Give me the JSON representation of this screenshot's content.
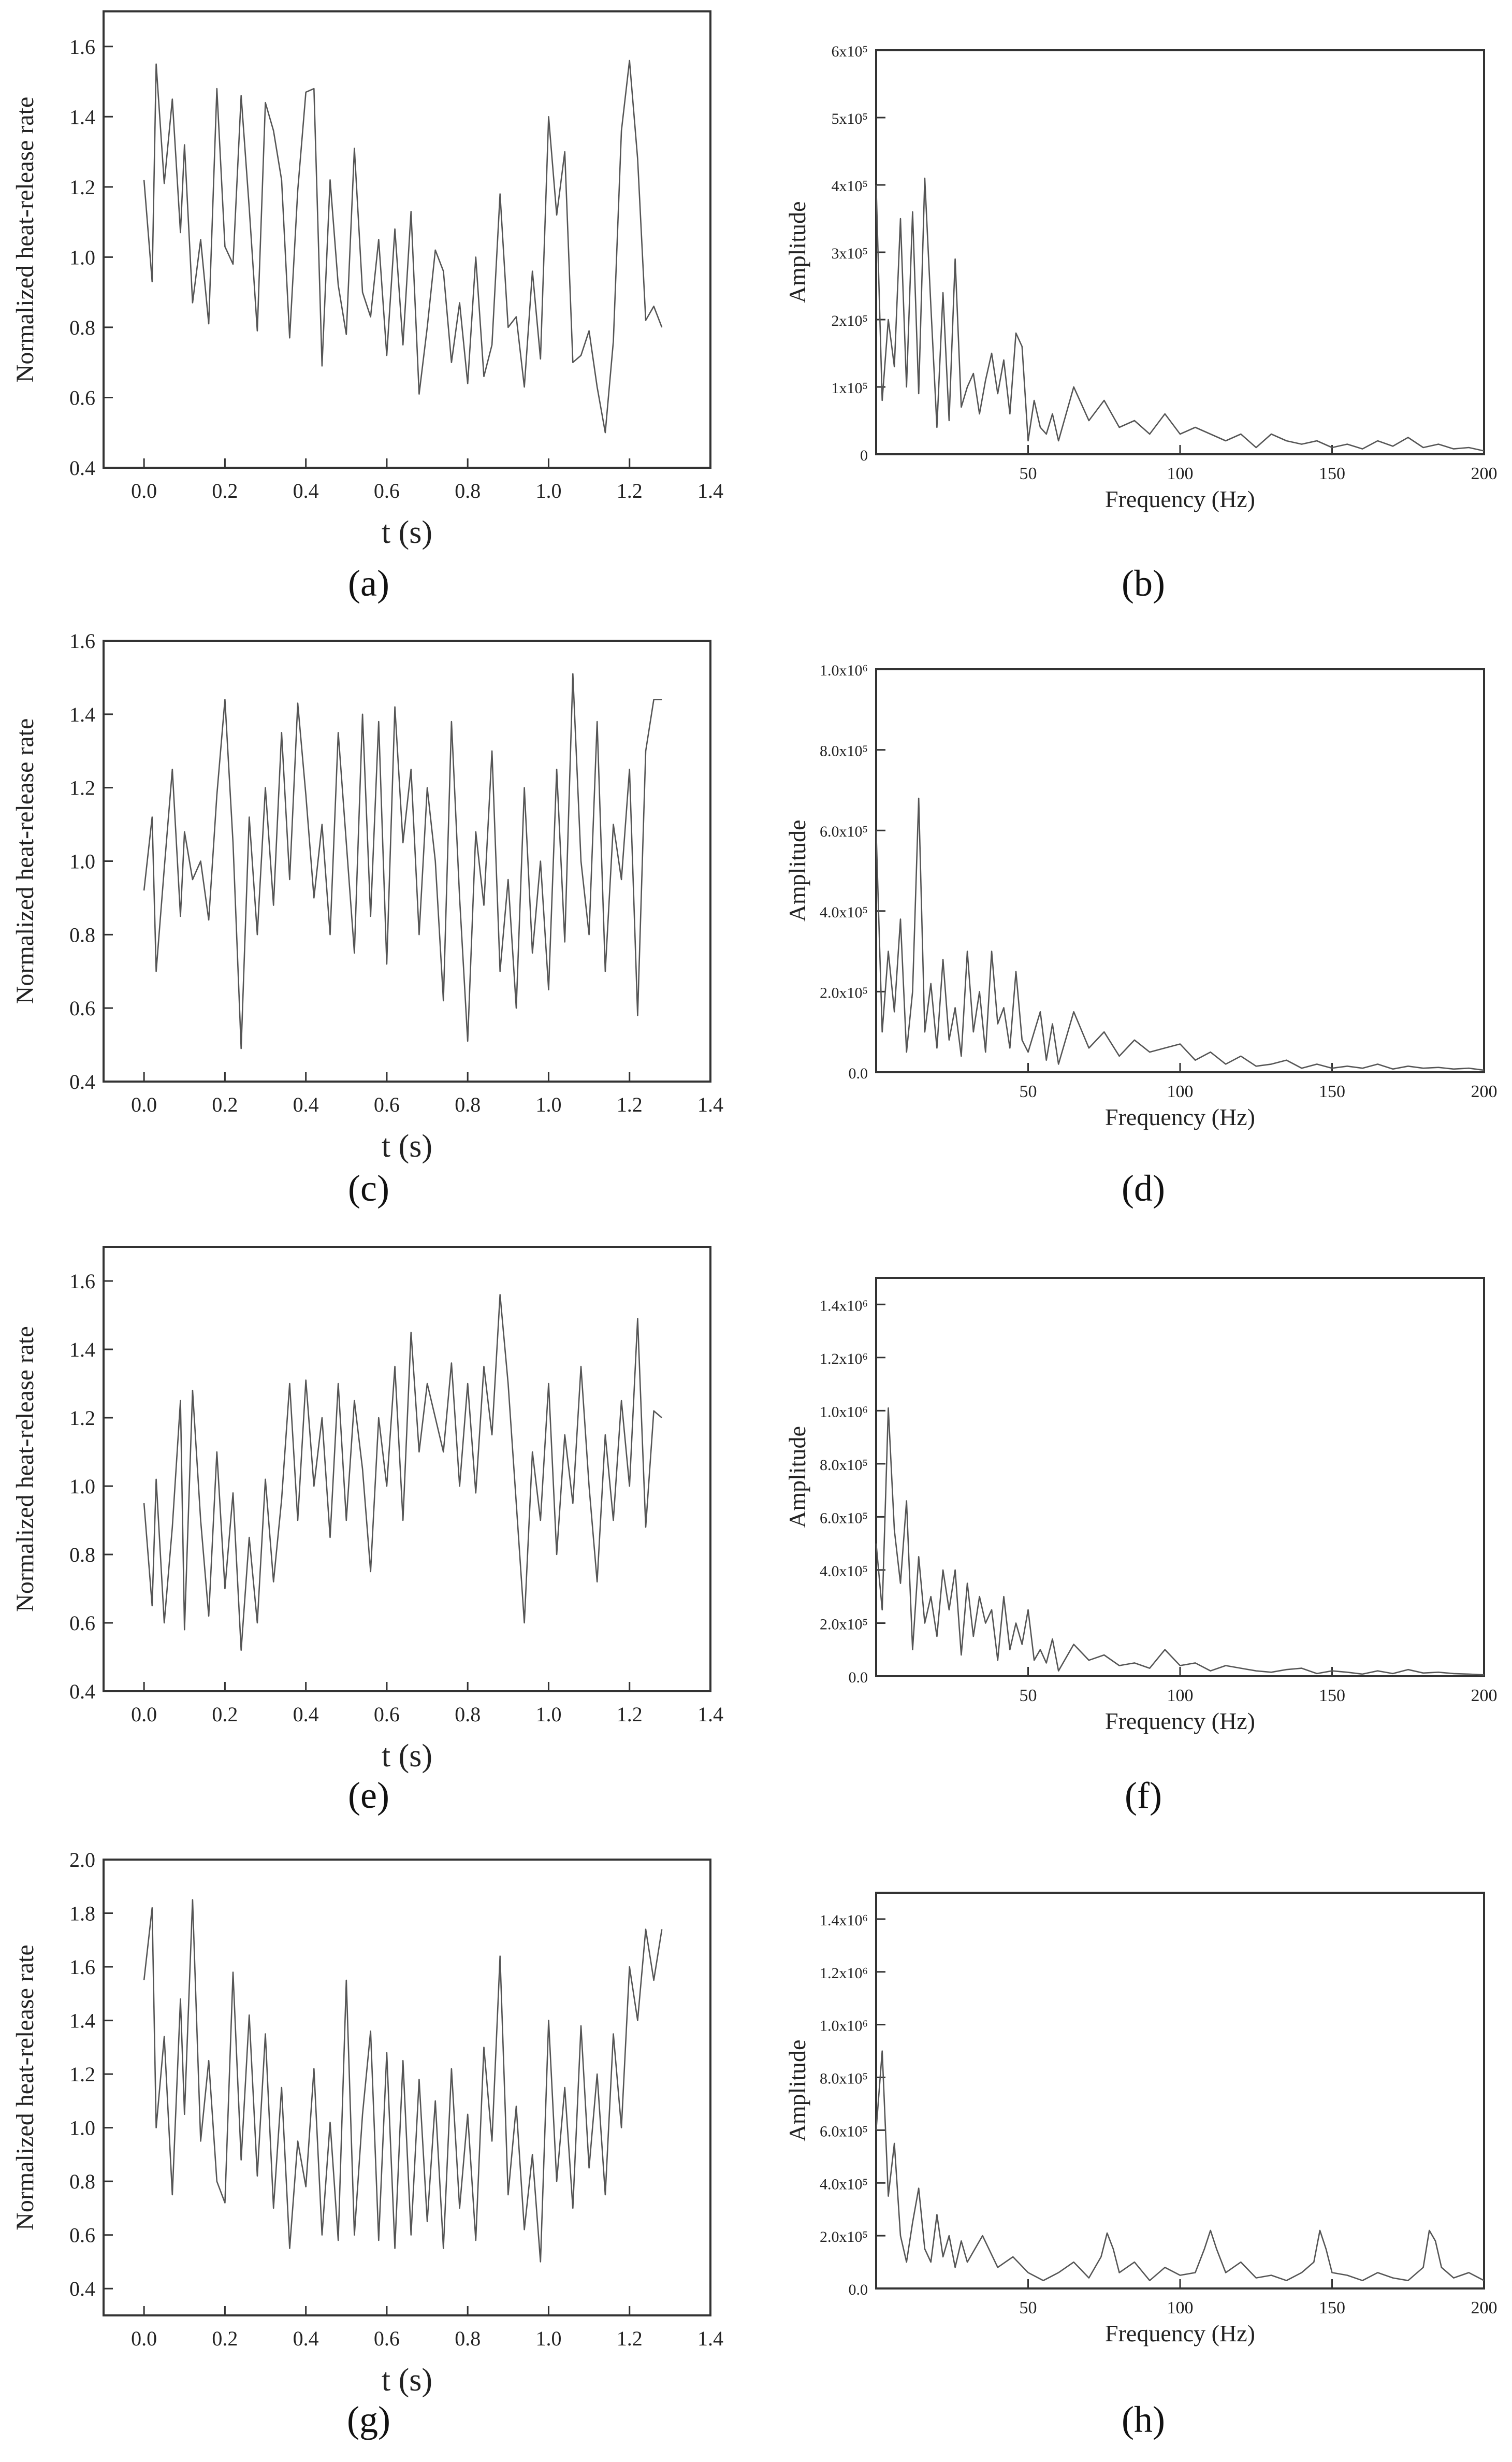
{
  "chart_data": [
    {
      "panel": "a",
      "type": "line",
      "xlabel": "t (s)",
      "ylabel": "Normalized heat-release rate",
      "xlim": [
        -0.1,
        1.4
      ],
      "ylim": [
        0.4,
        1.7
      ],
      "xticks": [
        "0.0",
        "0.2",
        "0.4",
        "0.6",
        "0.8",
        "1.0",
        "1.2",
        "1.4"
      ],
      "yticks": [
        "0.4",
        "0.6",
        "0.8",
        "1.0",
        "1.2",
        "1.4",
        "1.6"
      ],
      "x": [
        0.0,
        0.02,
        0.03,
        0.05,
        0.07,
        0.09,
        0.1,
        0.12,
        0.14,
        0.16,
        0.18,
        0.2,
        0.22,
        0.24,
        0.26,
        0.28,
        0.3,
        0.32,
        0.34,
        0.36,
        0.38,
        0.4,
        0.42,
        0.44,
        0.46,
        0.48,
        0.5,
        0.52,
        0.54,
        0.56,
        0.58,
        0.6,
        0.62,
        0.64,
        0.66,
        0.68,
        0.7,
        0.72,
        0.74,
        0.76,
        0.78,
        0.8,
        0.82,
        0.84,
        0.86,
        0.88,
        0.9,
        0.92,
        0.94,
        0.96,
        0.98,
        1.0,
        1.02,
        1.04,
        1.06,
        1.08,
        1.1,
        1.12,
        1.14,
        1.16,
        1.18,
        1.2,
        1.22,
        1.24,
        1.26,
        1.28
      ],
      "y": [
        1.22,
        0.93,
        1.55,
        1.21,
        1.45,
        1.07,
        1.32,
        0.87,
        1.05,
        0.81,
        1.48,
        1.03,
        0.98,
        1.46,
        1.14,
        0.79,
        1.44,
        1.36,
        1.22,
        0.77,
        1.19,
        1.47,
        1.48,
        0.69,
        1.22,
        0.92,
        0.78,
        1.31,
        0.9,
        0.83,
        1.05,
        0.72,
        1.08,
        0.75,
        1.13,
        0.61,
        0.8,
        1.02,
        0.96,
        0.7,
        0.87,
        0.64,
        1.0,
        0.66,
        0.75,
        1.18,
        0.8,
        0.83,
        0.63,
        0.96,
        0.71,
        1.4,
        1.12,
        1.3,
        0.7,
        0.72,
        0.79,
        0.63,
        0.5,
        0.76,
        1.36,
        1.56,
        1.28,
        0.82,
        0.86,
        0.8
      ]
    },
    {
      "panel": "b",
      "type": "line",
      "xlabel": "Frequency (Hz)",
      "ylabel": "Amplitude",
      "xlim": [
        0,
        200
      ],
      "ylim": [
        0,
        600000
      ],
      "xticks": [
        "50",
        "100",
        "150",
        "200"
      ],
      "yticks": [
        "0",
        "1x10⁵",
        "2x10⁵",
        "3x10⁵",
        "4x10⁵",
        "5x10⁵",
        "6x10⁵"
      ],
      "x": [
        0,
        2,
        4,
        6,
        8,
        10,
        12,
        14,
        16,
        18,
        20,
        22,
        24,
        26,
        28,
        30,
        32,
        34,
        36,
        38,
        40,
        42,
        44,
        46,
        48,
        50,
        52,
        54,
        56,
        58,
        60,
        65,
        70,
        75,
        80,
        85,
        90,
        95,
        100,
        105,
        110,
        115,
        120,
        125,
        130,
        135,
        140,
        145,
        150,
        155,
        160,
        165,
        170,
        175,
        180,
        185,
        190,
        195,
        200
      ],
      "y": [
        400000,
        80000,
        200000,
        130000,
        350000,
        100000,
        360000,
        90000,
        410000,
        220000,
        40000,
        240000,
        50000,
        290000,
        70000,
        100000,
        120000,
        60000,
        110000,
        150000,
        90000,
        140000,
        60000,
        180000,
        160000,
        20000,
        80000,
        40000,
        30000,
        60000,
        20000,
        100000,
        50000,
        80000,
        40000,
        50000,
        30000,
        60000,
        30000,
        40000,
        30000,
        20000,
        30000,
        10000,
        30000,
        20000,
        15000,
        20000,
        10000,
        15000,
        8000,
        20000,
        12000,
        25000,
        10000,
        15000,
        8000,
        10000,
        5000
      ]
    },
    {
      "panel": "c",
      "type": "line",
      "xlabel": "t (s)",
      "ylabel": "Normalized heat-release rate",
      "xlim": [
        -0.1,
        1.4
      ],
      "ylim": [
        0.4,
        1.6
      ],
      "xticks": [
        "0.0",
        "0.2",
        "0.4",
        "0.6",
        "0.8",
        "1.0",
        "1.2",
        "1.4"
      ],
      "yticks": [
        "0.4",
        "0.6",
        "0.8",
        "1.0",
        "1.2",
        "1.4",
        "1.6"
      ],
      "x": [
        0.0,
        0.02,
        0.03,
        0.05,
        0.07,
        0.09,
        0.1,
        0.12,
        0.14,
        0.16,
        0.18,
        0.2,
        0.22,
        0.24,
        0.26,
        0.28,
        0.3,
        0.32,
        0.34,
        0.36,
        0.38,
        0.4,
        0.42,
        0.44,
        0.46,
        0.48,
        0.5,
        0.52,
        0.54,
        0.56,
        0.58,
        0.6,
        0.62,
        0.64,
        0.66,
        0.68,
        0.7,
        0.72,
        0.74,
        0.76,
        0.78,
        0.8,
        0.82,
        0.84,
        0.86,
        0.88,
        0.9,
        0.92,
        0.94,
        0.96,
        0.98,
        1.0,
        1.02,
        1.04,
        1.06,
        1.08,
        1.1,
        1.12,
        1.14,
        1.16,
        1.18,
        1.2,
        1.22,
        1.24,
        1.26,
        1.28
      ],
      "y": [
        0.92,
        1.12,
        0.7,
        0.98,
        1.25,
        0.85,
        1.08,
        0.95,
        1.0,
        0.84,
        1.18,
        1.44,
        1.05,
        0.49,
        1.12,
        0.8,
        1.2,
        0.88,
        1.35,
        0.95,
        1.43,
        1.18,
        0.9,
        1.1,
        0.8,
        1.35,
        1.05,
        0.75,
        1.4,
        0.85,
        1.38,
        0.72,
        1.42,
        1.05,
        1.25,
        0.8,
        1.2,
        1.0,
        0.62,
        1.38,
        0.9,
        0.51,
        1.08,
        0.88,
        1.3,
        0.7,
        0.95,
        0.6,
        1.2,
        0.75,
        1.0,
        0.65,
        1.25,
        0.78,
        1.51,
        1.0,
        0.8,
        1.38,
        0.7,
        1.1,
        0.95,
        1.25,
        0.58,
        1.3,
        1.44,
        1.44
      ]
    },
    {
      "panel": "d",
      "type": "line",
      "xlabel": "Frequency (Hz)",
      "ylabel": "Amplitude",
      "xlim": [
        0,
        200
      ],
      "ylim": [
        0,
        1000000
      ],
      "xticks": [
        "50",
        "100",
        "150",
        "200"
      ],
      "yticks": [
        "0.0",
        "2.0x10⁵",
        "4.0x10⁵",
        "6.0x10⁵",
        "8.0x10⁵",
        "1.0x10⁶"
      ],
      "x": [
        0,
        2,
        4,
        6,
        8,
        10,
        12,
        14,
        16,
        18,
        20,
        22,
        24,
        26,
        28,
        30,
        32,
        34,
        36,
        38,
        40,
        42,
        44,
        46,
        48,
        50,
        52,
        54,
        56,
        58,
        60,
        65,
        70,
        75,
        80,
        85,
        90,
        95,
        100,
        105,
        110,
        115,
        120,
        125,
        130,
        135,
        140,
        145,
        150,
        155,
        160,
        165,
        170,
        175,
        180,
        185,
        190,
        195,
        200
      ],
      "y": [
        600000,
        100000,
        300000,
        150000,
        380000,
        50000,
        200000,
        680000,
        100000,
        220000,
        60000,
        280000,
        80000,
        160000,
        40000,
        300000,
        100000,
        200000,
        50000,
        300000,
        120000,
        160000,
        60000,
        250000,
        80000,
        50000,
        100000,
        150000,
        30000,
        120000,
        20000,
        150000,
        60000,
        100000,
        40000,
        80000,
        50000,
        60000,
        70000,
        30000,
        50000,
        20000,
        40000,
        15000,
        20000,
        30000,
        10000,
        20000,
        10000,
        15000,
        10000,
        20000,
        8000,
        15000,
        10000,
        12000,
        8000,
        10000,
        5000
      ]
    },
    {
      "panel": "e",
      "type": "line",
      "xlabel": "t (s)",
      "ylabel": "Normalized heat-release rate",
      "xlim": [
        -0.1,
        1.4
      ],
      "ylim": [
        0.4,
        1.7
      ],
      "xticks": [
        "0.0",
        "0.2",
        "0.4",
        "0.6",
        "0.8",
        "1.0",
        "1.2",
        "1.4"
      ],
      "yticks": [
        "0.4",
        "0.6",
        "0.8",
        "1.0",
        "1.2",
        "1.4",
        "1.6"
      ],
      "x": [
        0.0,
        0.02,
        0.03,
        0.05,
        0.07,
        0.09,
        0.1,
        0.12,
        0.14,
        0.16,
        0.18,
        0.2,
        0.22,
        0.24,
        0.26,
        0.28,
        0.3,
        0.32,
        0.34,
        0.36,
        0.38,
        0.4,
        0.42,
        0.44,
        0.46,
        0.48,
        0.5,
        0.52,
        0.54,
        0.56,
        0.58,
        0.6,
        0.62,
        0.64,
        0.66,
        0.68,
        0.7,
        0.72,
        0.74,
        0.76,
        0.78,
        0.8,
        0.82,
        0.84,
        0.86,
        0.88,
        0.9,
        0.92,
        0.94,
        0.96,
        0.98,
        1.0,
        1.02,
        1.04,
        1.06,
        1.08,
        1.1,
        1.12,
        1.14,
        1.16,
        1.18,
        1.2,
        1.22,
        1.24,
        1.26,
        1.28
      ],
      "y": [
        0.95,
        0.65,
        1.02,
        0.6,
        0.88,
        1.25,
        0.58,
        1.28,
        0.9,
        0.62,
        1.1,
        0.7,
        0.98,
        0.52,
        0.85,
        0.6,
        1.02,
        0.72,
        0.96,
        1.3,
        0.9,
        1.31,
        1.0,
        1.2,
        0.85,
        1.3,
        0.9,
        1.25,
        1.05,
        0.75,
        1.2,
        1.0,
        1.35,
        0.9,
        1.45,
        1.1,
        1.3,
        1.2,
        1.1,
        1.36,
        1.0,
        1.3,
        0.98,
        1.35,
        1.15,
        1.56,
        1.3,
        0.95,
        0.6,
        1.1,
        0.9,
        1.3,
        0.8,
        1.15,
        0.95,
        1.35,
        1.0,
        0.72,
        1.15,
        0.9,
        1.25,
        1.0,
        1.49,
        0.88,
        1.22,
        1.2
      ]
    },
    {
      "panel": "f",
      "type": "line",
      "xlabel": "Frequency (Hz)",
      "ylabel": "Amplitude",
      "xlim": [
        0,
        200
      ],
      "ylim": [
        0,
        1500000
      ],
      "xticks": [
        "50",
        "100",
        "150",
        "200"
      ],
      "yticks": [
        "0.0",
        "2.0x10⁵",
        "4.0x10⁵",
        "6.0x10⁵",
        "8.0x10⁵",
        "1.0x10⁶",
        "1.2x10⁶",
        "1.4x10⁶"
      ],
      "x": [
        0,
        2,
        4,
        6,
        8,
        10,
        12,
        14,
        16,
        18,
        20,
        22,
        24,
        26,
        28,
        30,
        32,
        34,
        36,
        38,
        40,
        42,
        44,
        46,
        48,
        50,
        52,
        54,
        56,
        58,
        60,
        65,
        70,
        75,
        80,
        85,
        90,
        95,
        100,
        105,
        110,
        115,
        120,
        125,
        130,
        135,
        140,
        145,
        150,
        155,
        160,
        165,
        170,
        175,
        180,
        185,
        190,
        195,
        200
      ],
      "y": [
        500000,
        250000,
        1010000,
        550000,
        350000,
        660000,
        100000,
        450000,
        200000,
        300000,
        150000,
        400000,
        250000,
        400000,
        80000,
        350000,
        150000,
        300000,
        200000,
        250000,
        60000,
        300000,
        100000,
        200000,
        120000,
        250000,
        60000,
        100000,
        50000,
        140000,
        20000,
        120000,
        60000,
        80000,
        40000,
        50000,
        30000,
        100000,
        40000,
        50000,
        20000,
        40000,
        30000,
        20000,
        15000,
        25000,
        30000,
        10000,
        20000,
        15000,
        8000,
        20000,
        10000,
        25000,
        12000,
        15000,
        10000,
        8000,
        5000
      ]
    },
    {
      "panel": "g",
      "type": "line",
      "xlabel": "t (s)",
      "ylabel": "Normalized heat-release rate",
      "xlim": [
        -0.1,
        1.4
      ],
      "ylim": [
        0.3,
        2.0
      ],
      "xticks": [
        "0.0",
        "0.2",
        "0.4",
        "0.6",
        "0.8",
        "1.0",
        "1.2",
        "1.4"
      ],
      "yticks": [
        "0.4",
        "0.6",
        "0.8",
        "1.0",
        "1.2",
        "1.4",
        "1.6",
        "1.8",
        "2.0"
      ],
      "x": [
        0.0,
        0.02,
        0.03,
        0.05,
        0.07,
        0.09,
        0.1,
        0.12,
        0.14,
        0.16,
        0.18,
        0.2,
        0.22,
        0.24,
        0.26,
        0.28,
        0.3,
        0.32,
        0.34,
        0.36,
        0.38,
        0.4,
        0.42,
        0.44,
        0.46,
        0.48,
        0.5,
        0.52,
        0.54,
        0.56,
        0.58,
        0.6,
        0.62,
        0.64,
        0.66,
        0.68,
        0.7,
        0.72,
        0.74,
        0.76,
        0.78,
        0.8,
        0.82,
        0.84,
        0.86,
        0.88,
        0.9,
        0.92,
        0.94,
        0.96,
        0.98,
        1.0,
        1.02,
        1.04,
        1.06,
        1.08,
        1.1,
        1.12,
        1.14,
        1.16,
        1.18,
        1.2,
        1.22,
        1.24,
        1.26,
        1.28
      ],
      "y": [
        1.55,
        1.82,
        1.0,
        1.34,
        0.75,
        1.48,
        1.05,
        1.85,
        0.95,
        1.25,
        0.8,
        0.72,
        1.58,
        0.88,
        1.42,
        0.82,
        1.35,
        0.7,
        1.15,
        0.55,
        0.95,
        0.78,
        1.22,
        0.6,
        1.02,
        0.58,
        1.55,
        0.6,
        1.05,
        1.36,
        0.58,
        1.28,
        0.55,
        1.25,
        0.6,
        1.18,
        0.65,
        1.1,
        0.55,
        1.22,
        0.7,
        1.05,
        0.58,
        1.3,
        0.95,
        1.64,
        0.75,
        1.08,
        0.62,
        0.9,
        0.5,
        1.4,
        0.8,
        1.15,
        0.7,
        1.38,
        0.85,
        1.2,
        0.75,
        1.35,
        1.0,
        1.6,
        1.4,
        1.74,
        1.55,
        1.74
      ]
    },
    {
      "panel": "h",
      "type": "line",
      "xlabel": "Frequency (Hz)",
      "ylabel": "Amplitude",
      "xlim": [
        0,
        200
      ],
      "ylim": [
        0,
        1500000
      ],
      "xticks": [
        "50",
        "100",
        "150",
        "200"
      ],
      "yticks": [
        "0.0",
        "2.0x10⁵",
        "4.0x10⁵",
        "6.0x10⁵",
        "8.0x10⁵",
        "1.0x10⁶",
        "1.2x10⁶",
        "1.4x10⁶"
      ],
      "x": [
        0,
        2,
        4,
        6,
        8,
        10,
        12,
        14,
        16,
        18,
        20,
        22,
        24,
        26,
        28,
        30,
        35,
        40,
        45,
        50,
        55,
        60,
        65,
        70,
        74,
        76,
        78,
        80,
        85,
        90,
        95,
        100,
        105,
        108,
        110,
        112,
        115,
        120,
        125,
        130,
        135,
        140,
        144,
        146,
        148,
        150,
        155,
        160,
        165,
        170,
        175,
        180,
        182,
        184,
        186,
        190,
        195,
        200
      ],
      "y": [
        600000,
        900000,
        350000,
        550000,
        200000,
        100000,
        250000,
        380000,
        150000,
        100000,
        280000,
        120000,
        200000,
        80000,
        180000,
        100000,
        200000,
        80000,
        120000,
        60000,
        30000,
        60000,
        100000,
        40000,
        120000,
        210000,
        150000,
        60000,
        100000,
        30000,
        80000,
        50000,
        60000,
        150000,
        220000,
        150000,
        60000,
        100000,
        40000,
        50000,
        30000,
        60000,
        100000,
        220000,
        150000,
        60000,
        50000,
        30000,
        60000,
        40000,
        30000,
        80000,
        220000,
        180000,
        80000,
        40000,
        60000,
        30000
      ]
    }
  ],
  "panel_labels": [
    "(a)",
    "(b)",
    "(c)",
    "(d)",
    "(e)",
    "(f)",
    "(g)",
    "(h)"
  ]
}
